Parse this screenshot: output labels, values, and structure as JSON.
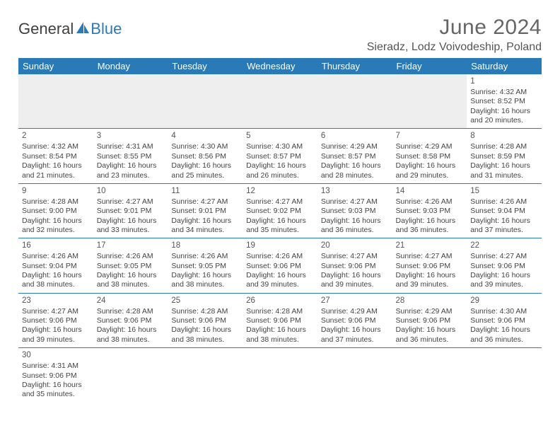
{
  "logo": {
    "text1": "General",
    "text2": "Blue"
  },
  "title": "June 2024",
  "location": "Sieradz, Lodz Voivodeship, Poland",
  "colors": {
    "header_bg": "#2a7ab8",
    "header_text": "#ffffff",
    "rule": "#2a7ab8"
  },
  "day_headers": [
    "Sunday",
    "Monday",
    "Tuesday",
    "Wednesday",
    "Thursday",
    "Friday",
    "Saturday"
  ],
  "weeks": [
    [
      null,
      null,
      null,
      null,
      null,
      null,
      {
        "n": "1",
        "sr": "4:32 AM",
        "ss": "8:52 PM",
        "dl": "16 hours and 20 minutes."
      }
    ],
    [
      {
        "n": "2",
        "sr": "4:32 AM",
        "ss": "8:54 PM",
        "dl": "16 hours and 21 minutes."
      },
      {
        "n": "3",
        "sr": "4:31 AM",
        "ss": "8:55 PM",
        "dl": "16 hours and 23 minutes."
      },
      {
        "n": "4",
        "sr": "4:30 AM",
        "ss": "8:56 PM",
        "dl": "16 hours and 25 minutes."
      },
      {
        "n": "5",
        "sr": "4:30 AM",
        "ss": "8:57 PM",
        "dl": "16 hours and 26 minutes."
      },
      {
        "n": "6",
        "sr": "4:29 AM",
        "ss": "8:57 PM",
        "dl": "16 hours and 28 minutes."
      },
      {
        "n": "7",
        "sr": "4:29 AM",
        "ss": "8:58 PM",
        "dl": "16 hours and 29 minutes."
      },
      {
        "n": "8",
        "sr": "4:28 AM",
        "ss": "8:59 PM",
        "dl": "16 hours and 31 minutes."
      }
    ],
    [
      {
        "n": "9",
        "sr": "4:28 AM",
        "ss": "9:00 PM",
        "dl": "16 hours and 32 minutes."
      },
      {
        "n": "10",
        "sr": "4:27 AM",
        "ss": "9:01 PM",
        "dl": "16 hours and 33 minutes."
      },
      {
        "n": "11",
        "sr": "4:27 AM",
        "ss": "9:01 PM",
        "dl": "16 hours and 34 minutes."
      },
      {
        "n": "12",
        "sr": "4:27 AM",
        "ss": "9:02 PM",
        "dl": "16 hours and 35 minutes."
      },
      {
        "n": "13",
        "sr": "4:27 AM",
        "ss": "9:03 PM",
        "dl": "16 hours and 36 minutes."
      },
      {
        "n": "14",
        "sr": "4:26 AM",
        "ss": "9:03 PM",
        "dl": "16 hours and 36 minutes."
      },
      {
        "n": "15",
        "sr": "4:26 AM",
        "ss": "9:04 PM",
        "dl": "16 hours and 37 minutes."
      }
    ],
    [
      {
        "n": "16",
        "sr": "4:26 AM",
        "ss": "9:04 PM",
        "dl": "16 hours and 38 minutes."
      },
      {
        "n": "17",
        "sr": "4:26 AM",
        "ss": "9:05 PM",
        "dl": "16 hours and 38 minutes."
      },
      {
        "n": "18",
        "sr": "4:26 AM",
        "ss": "9:05 PM",
        "dl": "16 hours and 38 minutes."
      },
      {
        "n": "19",
        "sr": "4:26 AM",
        "ss": "9:06 PM",
        "dl": "16 hours and 39 minutes."
      },
      {
        "n": "20",
        "sr": "4:27 AM",
        "ss": "9:06 PM",
        "dl": "16 hours and 39 minutes."
      },
      {
        "n": "21",
        "sr": "4:27 AM",
        "ss": "9:06 PM",
        "dl": "16 hours and 39 minutes."
      },
      {
        "n": "22",
        "sr": "4:27 AM",
        "ss": "9:06 PM",
        "dl": "16 hours and 39 minutes."
      }
    ],
    [
      {
        "n": "23",
        "sr": "4:27 AM",
        "ss": "9:06 PM",
        "dl": "16 hours and 39 minutes."
      },
      {
        "n": "24",
        "sr": "4:28 AM",
        "ss": "9:06 PM",
        "dl": "16 hours and 38 minutes."
      },
      {
        "n": "25",
        "sr": "4:28 AM",
        "ss": "9:06 PM",
        "dl": "16 hours and 38 minutes."
      },
      {
        "n": "26",
        "sr": "4:28 AM",
        "ss": "9:06 PM",
        "dl": "16 hours and 38 minutes."
      },
      {
        "n": "27",
        "sr": "4:29 AM",
        "ss": "9:06 PM",
        "dl": "16 hours and 37 minutes."
      },
      {
        "n": "28",
        "sr": "4:29 AM",
        "ss": "9:06 PM",
        "dl": "16 hours and 36 minutes."
      },
      {
        "n": "29",
        "sr": "4:30 AM",
        "ss": "9:06 PM",
        "dl": "16 hours and 36 minutes."
      }
    ],
    [
      {
        "n": "30",
        "sr": "4:31 AM",
        "ss": "9:06 PM",
        "dl": "16 hours and 35 minutes."
      },
      null,
      null,
      null,
      null,
      null,
      null
    ]
  ],
  "labels": {
    "sunrise": "Sunrise:",
    "sunset": "Sunset:",
    "daylight": "Daylight:"
  }
}
